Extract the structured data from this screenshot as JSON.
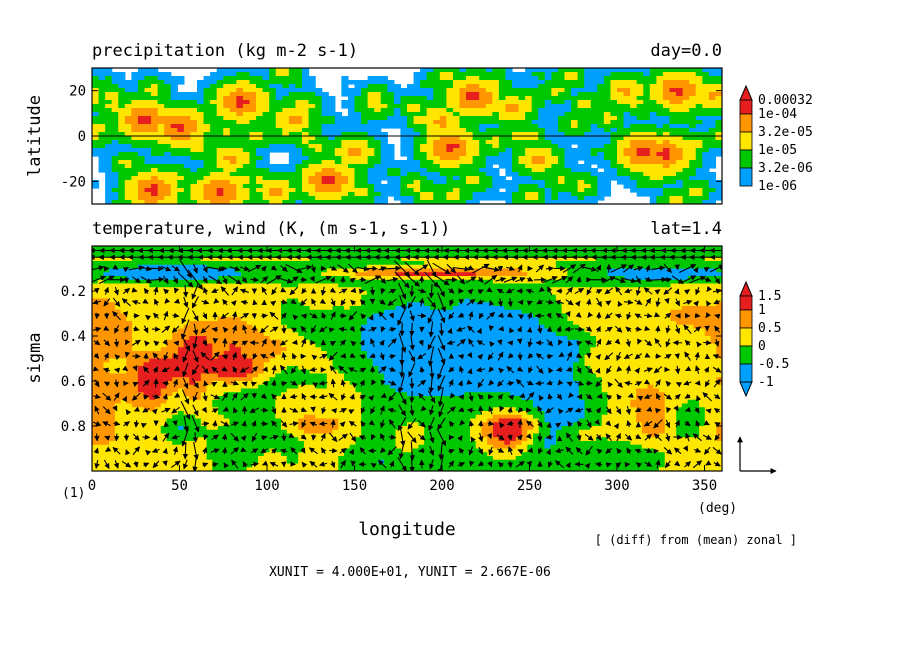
{
  "figure_label": "(1)",
  "footer": {
    "units_text": "XUNIT = 4.000E+01, YUNIT = 2.667E-06",
    "note": "[ (diff) from (mean) zonal ]"
  },
  "vector_scale": {
    "x_unit": "4.000E+01",
    "y_unit": "2.667E-06"
  },
  "chart_data": [
    {
      "type": "heatmap",
      "title": "precipitation (kg m-2 s-1)",
      "title_right": "day=0.0",
      "xlabel": "",
      "ylabel": "latitude",
      "xlim": [
        0,
        360
      ],
      "ylim": [
        -30,
        30
      ],
      "y_ticks": [
        20,
        0,
        -20
      ],
      "y_tick_labels": [
        "20",
        "0",
        "-20"
      ],
      "zero_line": true,
      "legend": {
        "placement": "right",
        "labels": [
          "0.00032",
          "1e-04",
          "3.2e-05",
          "1e-05",
          "3.2e-06",
          "1e-06"
        ],
        "bounds": [
          1e-06,
          3.2e-06,
          1e-05,
          3.2e-05,
          0.0001,
          0.00032
        ],
        "colors": [
          "#ffffff",
          "#00a0ff",
          "#00c800",
          "#ffe600",
          "#ff9600",
          "#e61e1e"
        ]
      },
      "cells": [
        {
          "lon": 30,
          "lat": 7,
          "level": 5
        },
        {
          "lon": 50,
          "lat": 4,
          "level": 5
        },
        {
          "lon": 85,
          "lat": 15,
          "level": 5
        },
        {
          "lon": 115,
          "lat": 7,
          "level": 4
        },
        {
          "lon": 218,
          "lat": 17,
          "level": 5
        },
        {
          "lon": 200,
          "lat": 6,
          "level": 4
        },
        {
          "lon": 240,
          "lat": 12,
          "level": 4
        },
        {
          "lon": 305,
          "lat": 20,
          "level": 4
        },
        {
          "lon": 335,
          "lat": 20,
          "level": 5
        },
        {
          "lon": 355,
          "lat": 18,
          "level": 4
        },
        {
          "lon": 35,
          "lat": -24,
          "level": 5
        },
        {
          "lon": 73,
          "lat": -25,
          "level": 5
        },
        {
          "lon": 105,
          "lat": -24,
          "level": 4
        },
        {
          "lon": 135,
          "lat": -20,
          "level": 5
        },
        {
          "lon": 205,
          "lat": -5,
          "level": 5
        },
        {
          "lon": 150,
          "lat": -7,
          "level": 4
        },
        {
          "lon": 80,
          "lat": -10,
          "level": 4
        },
        {
          "lon": 315,
          "lat": -7,
          "level": 5
        },
        {
          "lon": 328,
          "lat": -8,
          "level": 5
        },
        {
          "lon": 255,
          "lat": -10,
          "level": 4
        },
        {
          "lon": 20,
          "lat": -12,
          "level": 3
        },
        {
          "lon": 60,
          "lat": -2,
          "level": 3
        },
        {
          "lon": 250,
          "lat": 0,
          "level": 3
        },
        {
          "lon": 160,
          "lat": 14,
          "level": 3
        },
        {
          "lon": 280,
          "lat": -22,
          "level": 3
        },
        {
          "lon": 10,
          "lat": 18,
          "level": 3
        },
        {
          "lon": 95,
          "lat": 0,
          "level": 3
        },
        {
          "lon": 265,
          "lat": 20,
          "level": 3
        },
        {
          "lon": 345,
          "lat": -24,
          "level": 3
        },
        {
          "lon": 185,
          "lat": -22,
          "level": 3
        }
      ]
    },
    {
      "type": "heatmap",
      "title": "temperature, wind (K, (m s-1, s-1))",
      "title_right": "lat=1.4",
      "xlabel": "longitude",
      "x_unit_label": "(deg)",
      "ylabel": "sigma",
      "xlim": [
        0,
        360
      ],
      "ylim": [
        1.0,
        0.0
      ],
      "x_ticks": [
        0,
        50,
        100,
        150,
        200,
        250,
        300,
        350
      ],
      "x_tick_labels": [
        "0",
        "50",
        "100",
        "150",
        "200",
        "250",
        "300",
        "350"
      ],
      "y_ticks": [
        0.2,
        0.4,
        0.6,
        0.8
      ],
      "y_tick_labels": [
        "0.2",
        "0.4",
        "0.6",
        "0.8"
      ],
      "legend": {
        "placement": "right",
        "labels": [
          "1.5",
          "1",
          "0.5",
          "0",
          "-0.5",
          "-1"
        ],
        "bounds": [
          -1,
          -0.5,
          0,
          0.5,
          1,
          1.5
        ],
        "colors": [
          "#00a0ff",
          "#00c800",
          "#ffe600",
          "#ff9600",
          "#e61e1e"
        ]
      },
      "features": [
        {
          "lon": 185,
          "sigma": 0.12,
          "d_lon": 65,
          "d_sigma": 0.025,
          "value": 1.6
        },
        {
          "lon": 120,
          "sigma": 0.12,
          "d_lon": 70,
          "d_sigma": 0.04,
          "value": -0.9
        },
        {
          "lon": 320,
          "sigma": 0.12,
          "d_lon": 45,
          "d_sigma": 0.04,
          "value": -0.9
        },
        {
          "lon": 40,
          "sigma": 0.12,
          "d_lon": 35,
          "d_sigma": 0.04,
          "value": -0.9
        },
        {
          "lon": 65,
          "sigma": 0.45,
          "d_lon": 22,
          "d_sigma": 0.1,
          "value": 1.3
        },
        {
          "lon": 80,
          "sigma": 0.55,
          "d_lon": 16,
          "d_sigma": 0.05,
          "value": 1.1
        },
        {
          "lon": 40,
          "sigma": 0.55,
          "d_lon": 18,
          "d_sigma": 0.08,
          "value": 0.9
        },
        {
          "lon": 25,
          "sigma": 0.5,
          "d_lon": 20,
          "d_sigma": 0.25,
          "value": 0.7
        },
        {
          "lon": 5,
          "sigma": 0.5,
          "d_lon": 10,
          "d_sigma": 0.35,
          "value": 0.5
        },
        {
          "lon": 90,
          "sigma": 0.4,
          "d_lon": 30,
          "d_sigma": 0.3,
          "value": 0.4
        },
        {
          "lon": 205,
          "sigma": 0.35,
          "d_lon": 35,
          "d_sigma": 0.12,
          "value": -1.1
        },
        {
          "lon": 180,
          "sigma": 0.5,
          "d_lon": 25,
          "d_sigma": 0.15,
          "value": -0.9
        },
        {
          "lon": 130,
          "sigma": 0.3,
          "d_lon": 25,
          "d_sigma": 0.1,
          "value": -0.8
        },
        {
          "lon": 250,
          "sigma": 0.5,
          "d_lon": 25,
          "d_sigma": 0.15,
          "value": -0.8
        },
        {
          "lon": 270,
          "sigma": 0.7,
          "d_lon": 20,
          "d_sigma": 0.15,
          "value": -0.6
        },
        {
          "lon": 215,
          "sigma": 0.6,
          "d_lon": 40,
          "d_sigma": 0.3,
          "value": -0.5
        },
        {
          "lon": 340,
          "sigma": 0.35,
          "d_lon": 25,
          "d_sigma": 0.12,
          "value": 0.8
        },
        {
          "lon": 320,
          "sigma": 0.7,
          "d_lon": 22,
          "d_sigma": 0.15,
          "value": 0.6
        },
        {
          "lon": 285,
          "sigma": 0.4,
          "d_lon": 18,
          "d_sigma": 0.12,
          "value": 0.4
        },
        {
          "lon": 135,
          "sigma": 0.75,
          "d_lon": 18,
          "d_sigma": 0.12,
          "value": 0.5
        },
        {
          "lon": 230,
          "sigma": 0.82,
          "d_lon": 15,
          "d_sigma": 0.1,
          "value": 0.6
        },
        {
          "lon": 105,
          "sigma": 0.85,
          "d_lon": 20,
          "d_sigma": 0.12,
          "value": -0.4
        },
        {
          "lon": 200,
          "sigma": 0.95,
          "d_lon": 50,
          "d_sigma": 0.1,
          "value": -0.3
        }
      ],
      "vectors": {
        "type": "quiver",
        "description_free": true
      }
    }
  ]
}
